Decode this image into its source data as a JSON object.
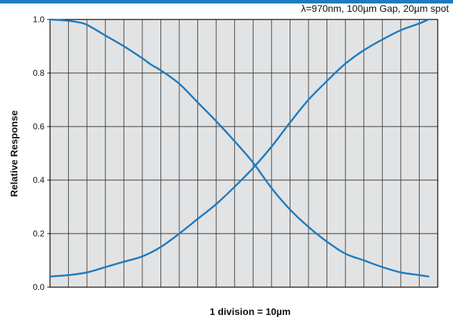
{
  "chart_data": {
    "type": "line",
    "title": "",
    "subtitle": "λ=970nm, 100µm Gap, 20µm spot",
    "xlabel": "1 division = 10µm",
    "ylabel": "Relative Response",
    "xlim": [
      0,
      210
    ],
    "ylim": [
      0,
      1.0
    ],
    "y_ticks": [
      "1.0",
      "0.8",
      "0.6",
      "0.4",
      "0.2",
      "0.0"
    ],
    "x_divisions": 21,
    "grid": true,
    "legend": "none",
    "colors": {
      "line": "#1f7bbf",
      "plot_background": "#e2e3e4",
      "grid": "#333333",
      "top_rule": "#1f7bbf"
    },
    "series": [
      {
        "x": [
          0,
          10,
          15,
          20,
          30,
          40,
          50,
          55,
          60,
          70,
          80,
          90,
          100,
          110,
          120,
          130,
          140,
          150,
          160,
          170,
          180,
          190,
          200,
          205
        ],
        "y": [
          1.0,
          0.995,
          0.99,
          0.98,
          0.94,
          0.9,
          0.855,
          0.83,
          0.81,
          0.76,
          0.69,
          0.62,
          0.545,
          0.465,
          0.37,
          0.29,
          0.225,
          0.17,
          0.125,
          0.1,
          0.075,
          0.055,
          0.045,
          0.04
        ]
      },
      {
        "x": [
          0,
          10,
          20,
          30,
          40,
          50,
          60,
          70,
          80,
          90,
          100,
          110,
          120,
          130,
          140,
          150,
          160,
          170,
          180,
          190,
          200,
          205
        ],
        "y": [
          0.04,
          0.045,
          0.055,
          0.075,
          0.095,
          0.115,
          0.15,
          0.2,
          0.255,
          0.31,
          0.375,
          0.445,
          0.525,
          0.615,
          0.7,
          0.77,
          0.835,
          0.885,
          0.925,
          0.96,
          0.985,
          1.0
        ]
      }
    ]
  }
}
